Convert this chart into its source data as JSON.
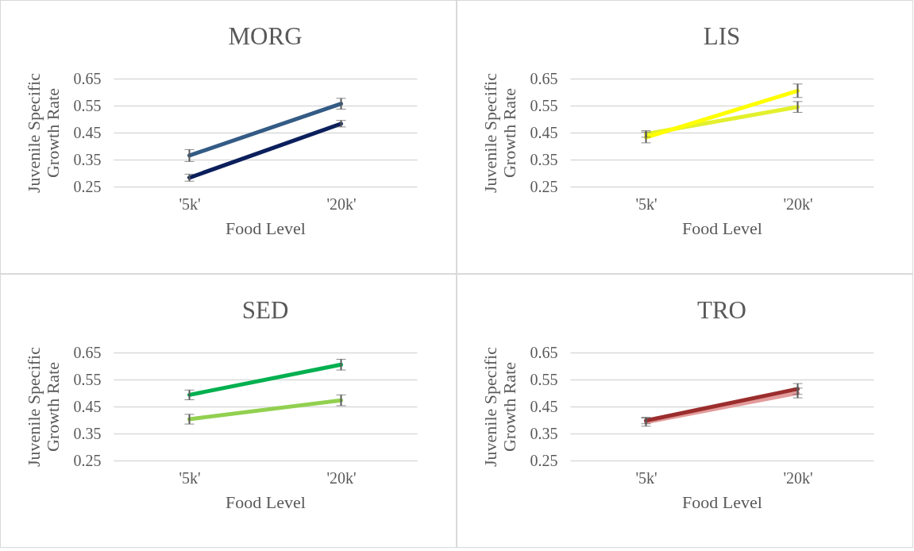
{
  "chart_data": [
    {
      "type": "line",
      "title": "MORG",
      "xlabel": "Food Level",
      "ylabel": "Juvenile Specific Growth Rate",
      "categories": [
        "'5k'",
        "'20k'"
      ],
      "ylim": [
        0.25,
        0.65
      ],
      "yticks": [
        0.25,
        0.35,
        0.45,
        0.55,
        0.65
      ],
      "grid": "y",
      "series": [
        {
          "color": "#335b85",
          "values": [
            0.365,
            0.557
          ],
          "errors": [
            0.022,
            0.02
          ]
        },
        {
          "color": "#0b1f5c",
          "values": [
            0.283,
            0.483
          ],
          "errors": [
            0.013,
            0.012
          ]
        }
      ]
    },
    {
      "type": "line",
      "title": "LIS",
      "xlabel": "Food Level",
      "ylabel": "Juvenile Specific Growth Rate",
      "categories": [
        "'5k'",
        "'20k'"
      ],
      "ylim": [
        0.25,
        0.65
      ],
      "yticks": [
        0.25,
        0.35,
        0.45,
        0.55,
        0.65
      ],
      "grid": "y",
      "series": [
        {
          "color": "#e3f02d",
          "values": [
            0.445,
            0.545
          ],
          "errors": [
            0.012,
            0.02
          ]
        },
        {
          "color": "#ffff00",
          "values": [
            0.432,
            0.605
          ],
          "errors": [
            0.02,
            0.025
          ]
        }
      ]
    },
    {
      "type": "line",
      "title": "SED",
      "xlabel": "Food Level",
      "ylabel": "Juvenile Specific Growth Rate",
      "categories": [
        "'5k'",
        "'20k'"
      ],
      "ylim": [
        0.25,
        0.65
      ],
      "yticks": [
        0.25,
        0.35,
        0.45,
        0.55,
        0.65
      ],
      "grid": "y",
      "series": [
        {
          "color": "#00b04f",
          "values": [
            0.493,
            0.605
          ],
          "errors": [
            0.018,
            0.02
          ]
        },
        {
          "color": "#92d050",
          "values": [
            0.403,
            0.473
          ],
          "errors": [
            0.018,
            0.02
          ]
        }
      ]
    },
    {
      "type": "line",
      "title": "TRO",
      "xlabel": "Food Level",
      "ylabel": "Juvenile Specific Growth Rate",
      "categories": [
        "'5k'",
        "'20k'"
      ],
      "ylim": [
        0.25,
        0.65
      ],
      "yticks": [
        0.25,
        0.35,
        0.45,
        0.55,
        0.65
      ],
      "grid": "y",
      "series": [
        {
          "color": "#e39b9b",
          "values": [
            0.392,
            0.5
          ],
          "errors": [
            0.015,
            0.018
          ]
        },
        {
          "color": "#9b2d2d",
          "values": [
            0.398,
            0.515
          ],
          "errors": [
            0.012,
            0.02
          ]
        }
      ]
    }
  ]
}
